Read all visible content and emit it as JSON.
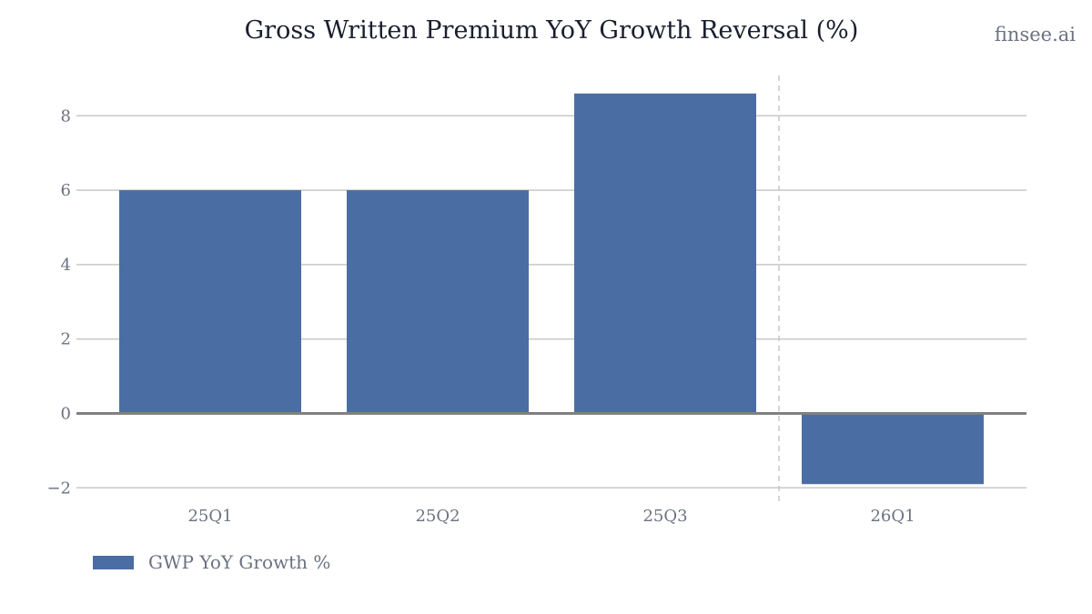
{
  "header": {
    "title": "Gross Written Premium YoY Growth Reversal (%)",
    "brand": "finsee.ai"
  },
  "colors": {
    "bar": "#4a6ea3",
    "grid": "#c8c8c8",
    "zero_line": "#808080",
    "divider": "#c8c8c8",
    "text": "#6b7280"
  },
  "chart_data": {
    "type": "bar",
    "title": "Gross Written Premium YoY Growth Reversal (%)",
    "xlabel": "",
    "ylabel": "",
    "categories": [
      "25Q1",
      "25Q2",
      "25Q3",
      "26Q1"
    ],
    "series": [
      {
        "name": "GWP YoY Growth %",
        "values": [
          6.0,
          6.0,
          8.6,
          -1.9
        ]
      }
    ],
    "yticks": [
      -2,
      0,
      2,
      4,
      6,
      8
    ],
    "ytick_labels": [
      "−2",
      "0",
      "2",
      "4",
      "6",
      "8"
    ],
    "ylim": [
      -2.2,
      9.1
    ],
    "grid": true,
    "divider_between": [
      "25Q3",
      "26Q1"
    ],
    "legend_position": "bottom-left"
  }
}
